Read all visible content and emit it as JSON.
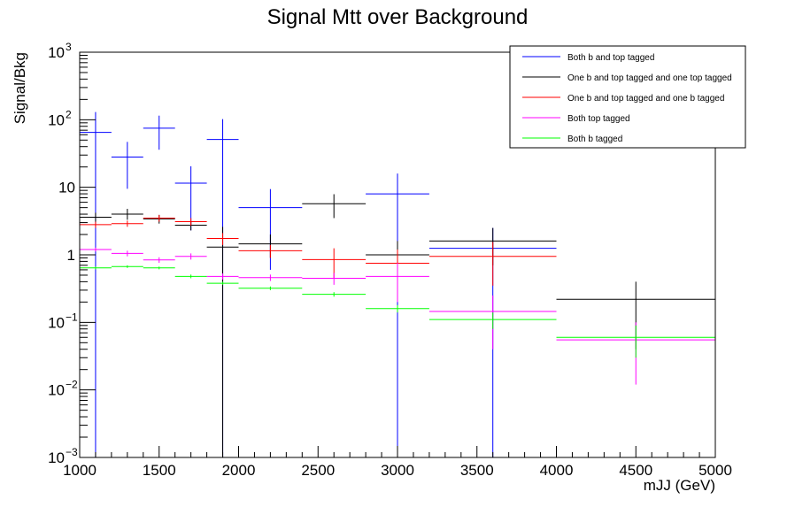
{
  "chart_data": {
    "type": "line",
    "title": "Signal Mtt over Background",
    "xlabel": "mJJ (GeV)",
    "ylabel": "Signal/Bkg",
    "xlim": [
      1000,
      5000
    ],
    "ylim": [
      0.001,
      1000
    ],
    "yscale": "log",
    "grid": false,
    "legend_position": "top-right",
    "x_tick_labels": [
      "1000",
      "1500",
      "2000",
      "2500",
      "3000",
      "3500",
      "4000",
      "4500",
      "5000"
    ],
    "x_ticks": [
      1000,
      1500,
      2000,
      2500,
      3000,
      3500,
      4000,
      4500,
      5000
    ],
    "y_tick_labels": [
      {
        "value": 0.001,
        "base": "10",
        "exp": "−3"
      },
      {
        "value": 0.01,
        "base": "10",
        "exp": "−2"
      },
      {
        "value": 0.1,
        "base": "10",
        "exp": "−1"
      },
      {
        "value": 1,
        "base": "1",
        "exp": ""
      },
      {
        "value": 10,
        "base": "10",
        "exp": ""
      },
      {
        "value": 100,
        "base": "10",
        "exp": "2"
      },
      {
        "value": 1000,
        "base": "10",
        "exp": "3"
      }
    ],
    "series": [
      {
        "name": "Both b and top tagged",
        "color": "#0000ff",
        "bins": [
          {
            "x0": 1000,
            "x1": 1200,
            "y": 65,
            "lo": 0.001,
            "hi": 130
          },
          {
            "x0": 1200,
            "x1": 1400,
            "y": 28,
            "lo": 9.5,
            "hi": 47
          },
          {
            "x0": 1400,
            "x1": 1600,
            "y": 75,
            "lo": 36,
            "hi": 115
          },
          {
            "x0": 1600,
            "x1": 1800,
            "y": 11.5,
            "lo": 2.3,
            "hi": 20.5
          },
          {
            "x0": 1800,
            "x1": 2000,
            "y": 51,
            "lo": 0.001,
            "hi": 102
          },
          {
            "x0": 2000,
            "x1": 2400,
            "y": 5,
            "lo": 0.6,
            "hi": 9.4
          },
          {
            "x0": 2800,
            "x1": 3200,
            "y": 8,
            "lo": 0.001,
            "hi": 16
          },
          {
            "x0": 3200,
            "x1": 4000,
            "y": 1.25,
            "lo": 0.001,
            "hi": 2.5
          }
        ]
      },
      {
        "name": "One b and top tagged and one top tagged",
        "color": "#000000",
        "bins": [
          {
            "x0": 1000,
            "x1": 1200,
            "y": 3.6,
            "lo": 3.0,
            "hi": 4.2
          },
          {
            "x0": 1200,
            "x1": 1400,
            "y": 4.0,
            "lo": 3.3,
            "hi": 4.8
          },
          {
            "x0": 1400,
            "x1": 1600,
            "y": 3.4,
            "lo": 2.9,
            "hi": 3.9
          },
          {
            "x0": 1600,
            "x1": 1800,
            "y": 2.75,
            "lo": 2.3,
            "hi": 3.2
          },
          {
            "x0": 1800,
            "x1": 2000,
            "y": 1.3,
            "lo": 0.001,
            "hi": 2.6
          },
          {
            "x0": 2000,
            "x1": 2400,
            "y": 1.45,
            "lo": 0.9,
            "hi": 2.0
          },
          {
            "x0": 2400,
            "x1": 2800,
            "y": 5.7,
            "lo": 3.5,
            "hi": 7.9
          },
          {
            "x0": 2800,
            "x1": 3200,
            "y": 1.0,
            "lo": 0.4,
            "hi": 1.6
          },
          {
            "x0": 3200,
            "x1": 4000,
            "y": 1.6,
            "lo": 0.7,
            "hi": 2.5
          },
          {
            "x0": 4000,
            "x1": 5000,
            "y": 0.22,
            "lo": 0.04,
            "hi": 0.4
          }
        ]
      },
      {
        "name": "One b and top tagged and one b tagged",
        "color": "#ff0000",
        "bins": [
          {
            "x0": 1000,
            "x1": 1200,
            "y": 2.8,
            "lo": 2.5,
            "hi": 3.1
          },
          {
            "x0": 1200,
            "x1": 1400,
            "y": 2.9,
            "lo": 2.6,
            "hi": 3.2
          },
          {
            "x0": 1400,
            "x1": 1600,
            "y": 3.5,
            "lo": 3.1,
            "hi": 3.9
          },
          {
            "x0": 1600,
            "x1": 1800,
            "y": 3.1,
            "lo": 2.7,
            "hi": 3.5
          },
          {
            "x0": 1800,
            "x1": 2000,
            "y": 1.75,
            "lo": 1.4,
            "hi": 2.1
          },
          {
            "x0": 2000,
            "x1": 2400,
            "y": 1.15,
            "lo": 0.9,
            "hi": 1.4
          },
          {
            "x0": 2400,
            "x1": 2800,
            "y": 0.85,
            "lo": 0.45,
            "hi": 1.25
          },
          {
            "x0": 2800,
            "x1": 3200,
            "y": 0.75,
            "lo": 0.3,
            "hi": 1.2
          },
          {
            "x0": 3200,
            "x1": 4000,
            "y": 0.95,
            "lo": 0.35,
            "hi": 1.55
          }
        ]
      },
      {
        "name": "Both top tagged",
        "color": "#ff00ff",
        "bins": [
          {
            "x0": 1000,
            "x1": 1200,
            "y": 1.2,
            "lo": 1.12,
            "hi": 1.28
          },
          {
            "x0": 1200,
            "x1": 1400,
            "y": 1.05,
            "lo": 0.95,
            "hi": 1.15
          },
          {
            "x0": 1400,
            "x1": 1600,
            "y": 0.84,
            "lo": 0.76,
            "hi": 0.92
          },
          {
            "x0": 1600,
            "x1": 1800,
            "y": 0.95,
            "lo": 0.85,
            "hi": 1.05
          },
          {
            "x0": 1800,
            "x1": 2000,
            "y": 0.48,
            "lo": 0.43,
            "hi": 0.53
          },
          {
            "x0": 2000,
            "x1": 2400,
            "y": 0.46,
            "lo": 0.41,
            "hi": 0.51
          },
          {
            "x0": 2400,
            "x1": 2800,
            "y": 0.45,
            "lo": 0.36,
            "hi": 0.54
          },
          {
            "x0": 2800,
            "x1": 3200,
            "y": 0.48,
            "lo": 0.2,
            "hi": 0.76
          },
          {
            "x0": 3200,
            "x1": 4000,
            "y": 0.145,
            "lo": 0.04,
            "hi": 0.25
          },
          {
            "x0": 4000,
            "x1": 5000,
            "y": 0.055,
            "lo": 0.012,
            "hi": 0.1
          }
        ]
      },
      {
        "name": "Both b tagged",
        "color": "#00ff00",
        "bins": [
          {
            "x0": 1000,
            "x1": 1200,
            "y": 0.64,
            "lo": 0.61,
            "hi": 0.67
          },
          {
            "x0": 1200,
            "x1": 1400,
            "y": 0.67,
            "lo": 0.64,
            "hi": 0.7
          },
          {
            "x0": 1400,
            "x1": 1600,
            "y": 0.64,
            "lo": 0.61,
            "hi": 0.67
          },
          {
            "x0": 1600,
            "x1": 1800,
            "y": 0.48,
            "lo": 0.45,
            "hi": 0.51
          },
          {
            "x0": 1800,
            "x1": 2000,
            "y": 0.38,
            "lo": 0.36,
            "hi": 0.4
          },
          {
            "x0": 2000,
            "x1": 2400,
            "y": 0.32,
            "lo": 0.3,
            "hi": 0.34
          },
          {
            "x0": 2400,
            "x1": 2800,
            "y": 0.26,
            "lo": 0.24,
            "hi": 0.28
          },
          {
            "x0": 2800,
            "x1": 3200,
            "y": 0.16,
            "lo": 0.14,
            "hi": 0.18
          },
          {
            "x0": 3200,
            "x1": 4000,
            "y": 0.11,
            "lo": 0.08,
            "hi": 0.14
          },
          {
            "x0": 4000,
            "x1": 5000,
            "y": 0.06,
            "lo": 0.03,
            "hi": 0.09
          }
        ]
      }
    ]
  }
}
